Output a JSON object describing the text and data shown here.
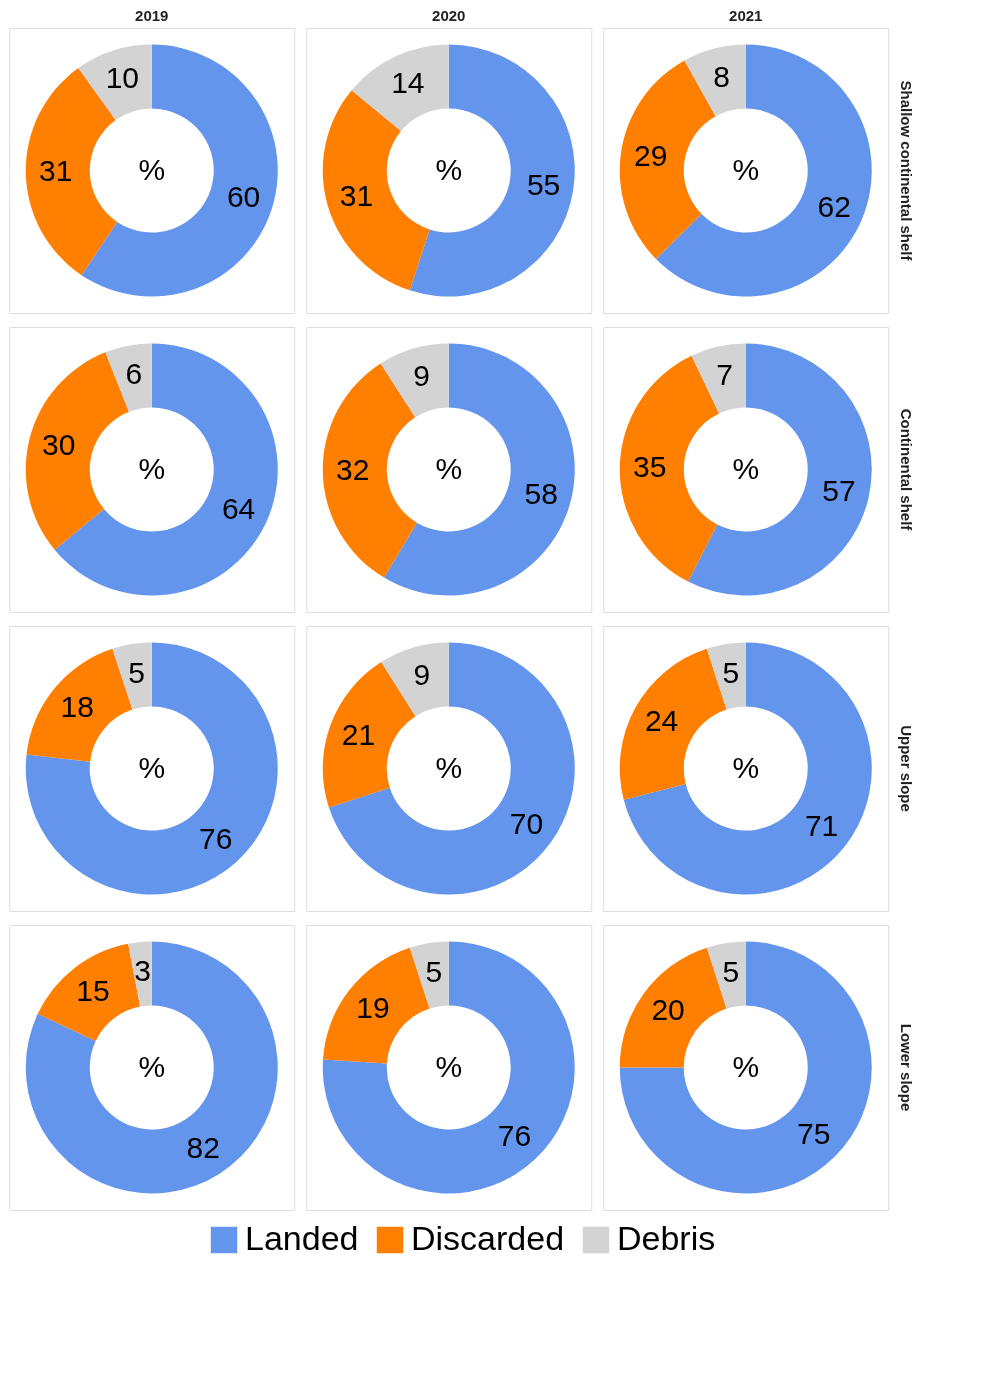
{
  "chart_data": [
    {
      "type": "donut",
      "title": "2019",
      "categories": [
        null,
        null,
        null
      ],
      "values": [
        60,
        31,
        10
      ],
      "colors": [
        "#6495ed",
        "#ff7f00",
        "#d3d3d3"
      ],
      "data_labels": true,
      "annotations": [
        "%"
      ]
    },
    {
      "type": "donut",
      "title": "2020",
      "categories": [
        null,
        null,
        null
      ],
      "values": [
        55,
        31,
        14
      ],
      "colors": [
        "#6495ed",
        "#ff7f00",
        "#d3d3d3"
      ],
      "data_labels": true,
      "annotations": [
        "%"
      ]
    },
    {
      "type": "donut",
      "title": "2021",
      "y2label": "Shallow continental shelf",
      "categories": [
        null,
        null,
        null
      ],
      "values": [
        62,
        29,
        8
      ],
      "colors": [
        "#6495ed",
        "#ff7f00",
        "#d3d3d3"
      ],
      "data_labels": true,
      "annotations": [
        "%"
      ]
    },
    {
      "type": "donut",
      "categories": [
        null,
        null,
        null
      ],
      "values": [
        64,
        30,
        6
      ],
      "colors": [
        "#6495ed",
        "#ff7f00",
        "#d3d3d3"
      ],
      "data_labels": true,
      "annotations": [
        "%"
      ]
    },
    {
      "type": "donut",
      "categories": [
        null,
        null,
        null
      ],
      "values": [
        58,
        32,
        9
      ],
      "colors": [
        "#6495ed",
        "#ff7f00",
        "#d3d3d3"
      ],
      "data_labels": true,
      "annotations": [
        "%"
      ]
    },
    {
      "type": "donut",
      "y2label": "Continental shelf",
      "categories": [
        null,
        null,
        null
      ],
      "values": [
        57,
        35,
        7
      ],
      "colors": [
        "#6495ed",
        "#ff7f00",
        "#d3d3d3"
      ],
      "data_labels": true,
      "annotations": [
        "%"
      ]
    },
    {
      "type": "donut",
      "categories": [
        null,
        null,
        null
      ],
      "values": [
        76,
        18,
        5
      ],
      "colors": [
        "#6495ed",
        "#ff7f00",
        "#d3d3d3"
      ],
      "data_labels": true,
      "annotations": [
        "%"
      ]
    },
    {
      "type": "donut",
      "categories": [
        null,
        null,
        null
      ],
      "values": [
        70,
        21,
        9
      ],
      "colors": [
        "#6495ed",
        "#ff7f00",
        "#d3d3d3"
      ],
      "data_labels": true,
      "annotations": [
        "%"
      ]
    },
    {
      "type": "donut",
      "y2label": "Upper slope",
      "categories": [
        null,
        null,
        null
      ],
      "values": [
        71,
        24,
        5
      ],
      "colors": [
        "#6495ed",
        "#ff7f00",
        "#d3d3d3"
      ],
      "data_labels": true,
      "annotations": [
        "%"
      ]
    },
    {
      "type": "donut",
      "categories": [
        null,
        null,
        null
      ],
      "values": [
        82,
        15,
        3
      ],
      "colors": [
        "#6495ed",
        "#ff7f00",
        "#d3d3d3"
      ],
      "data_labels": true,
      "annotations": [
        "%"
      ]
    },
    {
      "type": "donut",
      "categories": [
        null,
        null,
        null
      ],
      "values": [
        76,
        19,
        5
      ],
      "colors": [
        "#6495ed",
        "#ff7f00",
        "#d3d3d3"
      ],
      "data_labels": true,
      "annotations": [
        "%"
      ]
    },
    {
      "type": "donut",
      "y2label": "Lower slope",
      "categories": [
        "Landed",
        "Discarded",
        "Debris"
      ],
      "values": [
        75,
        20,
        5
      ],
      "colors": [
        "#6495ed",
        "#ff7f00",
        "#d3d3d3"
      ],
      "data_labels": true,
      "annotations": [
        "%"
      ],
      "legend": "bottom"
    }
  ]
}
